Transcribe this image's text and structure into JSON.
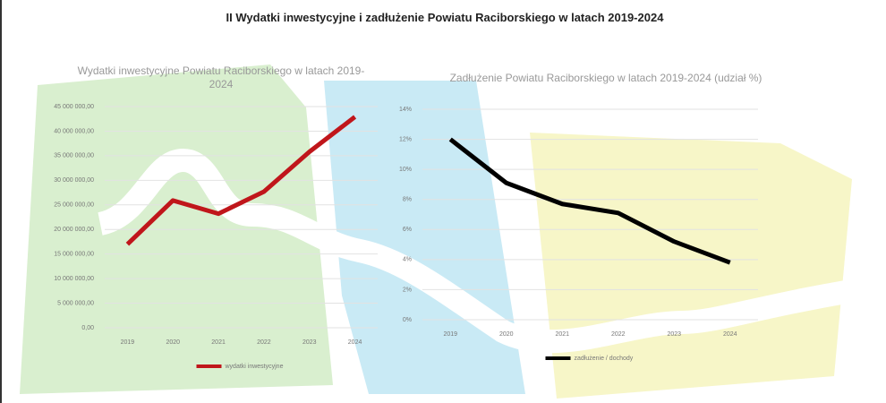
{
  "title": "II Wydatki inwestycyjne i zadłużenie Powiatu Raciborskiego w latach 2019-2024",
  "chart_data": [
    {
      "type": "line",
      "title": "Wydatki inwestycyjne Powiatu Raciborskiego w latach 2019-2024",
      "categories": [
        "2019",
        "2020",
        "2021",
        "2022",
        "2023",
        "2024"
      ],
      "series": [
        {
          "name": "wydatki inwestycyjne",
          "color": "#c0161b",
          "values": [
            17000000,
            25900000,
            23200000,
            27700000,
            35800000,
            42900000
          ]
        }
      ],
      "ylim": [
        0,
        45000000
      ],
      "yticks": [
        {
          "value": 0,
          "label": "0,00"
        },
        {
          "value": 5000000,
          "label": "5 000 000,00"
        },
        {
          "value": 10000000,
          "label": "10 000 000,00"
        },
        {
          "value": 15000000,
          "label": "15 000 000,00"
        },
        {
          "value": 20000000,
          "label": "20 000 000,00"
        },
        {
          "value": 25000000,
          "label": "25 000 000,00"
        },
        {
          "value": 30000000,
          "label": "30 000 000,00"
        },
        {
          "value": 35000000,
          "label": "35 000 000,00"
        },
        {
          "value": 40000000,
          "label": "40 000 000,00"
        },
        {
          "value": 45000000,
          "label": "45 000 000,00"
        }
      ],
      "grid": true,
      "legend": "bottom"
    },
    {
      "type": "line",
      "title": "Zadłużenie Powiatu Raciborskiego w latach 2019-2024 (udział %)",
      "categories": [
        "2019",
        "2020",
        "2021",
        "2022",
        "2023",
        "2024"
      ],
      "series": [
        {
          "name": "zadłużenie / dochody",
          "color": "#000000",
          "values": [
            12.0,
            9.1,
            7.7,
            7.1,
            5.2,
            3.8
          ]
        }
      ],
      "ylim": [
        0,
        14
      ],
      "yticks": [
        {
          "value": 0,
          "label": "0%"
        },
        {
          "value": 2,
          "label": "2%"
        },
        {
          "value": 4,
          "label": "4%"
        },
        {
          "value": 6,
          "label": "6%"
        },
        {
          "value": 8,
          "label": "8%"
        },
        {
          "value": 10,
          "label": "10%"
        },
        {
          "value": 12,
          "label": "12%"
        },
        {
          "value": 14,
          "label": "14%"
        }
      ],
      "grid": true,
      "legend": "bottom"
    }
  ]
}
